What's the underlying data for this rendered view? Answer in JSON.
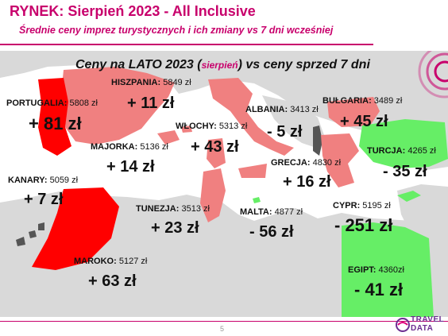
{
  "header": {
    "title": "RYNEK: Sierpień 2023 - All Inclusive",
    "subtitle": "Średnie ceny imprez turystycznych i ich zmiany vs 7 dni wcześniej"
  },
  "heading": {
    "part1": "Ceny na LATO 2023 (",
    "month": "sierpień",
    "part2": ") vs ceny sprzed 7 dni"
  },
  "colors": {
    "brand": "#c8006c",
    "rise_strong": "#ff0000",
    "rise_mild": "#f08080",
    "fall": "#66ee66",
    "fall_dark": "#555555",
    "land": "#d9d9d9",
    "sea": "#ffffff"
  },
  "chart_data": {
    "type": "map",
    "unit": "zł",
    "entries": [
      {
        "name": "PORTUGALIA",
        "price": 5808,
        "change": 81,
        "price_text": "5808 zł",
        "change_text": "+ 81 zł"
      },
      {
        "name": "HISZPANIA",
        "price": 5849,
        "change": 11,
        "price_text": "5849 zł",
        "change_text": "+ 11 zł"
      },
      {
        "name": "WŁOCHY",
        "price": 5313,
        "change": 43,
        "price_text": "5313 zł",
        "change_text": "+ 43 zł"
      },
      {
        "name": "ALBANIA",
        "price": 3413,
        "change": -5,
        "price_text": "3413 zł",
        "change_text": "- 5 zł"
      },
      {
        "name": "BUŁGARIA",
        "price": 3489,
        "change": 45,
        "price_text": "3489 zł",
        "change_text": "+ 45 zł"
      },
      {
        "name": "MAJORKA",
        "price": 5136,
        "change": 14,
        "price_text": "5136 zł",
        "change_text": "+ 14 zł"
      },
      {
        "name": "TURCJA",
        "price": 4265,
        "change": -35,
        "price_text": "4265 zł",
        "change_text": "- 35 zł"
      },
      {
        "name": "KANARY",
        "price": 5059,
        "change": 7,
        "price_text": "5059 zł",
        "change_text": "+ 7 zł"
      },
      {
        "name": "GRECJA",
        "price": 4830,
        "change": 16,
        "price_text": "4830 zł",
        "change_text": "+ 16 zł"
      },
      {
        "name": "TUNEZJA",
        "price": 3513,
        "change": 23,
        "price_text": "3513 zł",
        "change_text": "+ 23 zł"
      },
      {
        "name": "MALTA",
        "price": 4877,
        "change": -56,
        "price_text": "4877 zł",
        "change_text": "- 56 zł"
      },
      {
        "name": "CYPR",
        "price": 5195,
        "change": -251,
        "price_text": "5195 zł",
        "change_text": "- 251 zł"
      },
      {
        "name": "MAROKO",
        "price": 5127,
        "change": 63,
        "price_text": "5127 zł",
        "change_text": "+ 63 zł"
      },
      {
        "name": "EGIPT",
        "price": 4360,
        "change": -41,
        "price_text": "4360zł",
        "change_text": "- 41 zł"
      }
    ]
  },
  "footer": {
    "page_number": "5",
    "logo_top": "TRAVEL",
    "logo_bottom": "DATA"
  }
}
